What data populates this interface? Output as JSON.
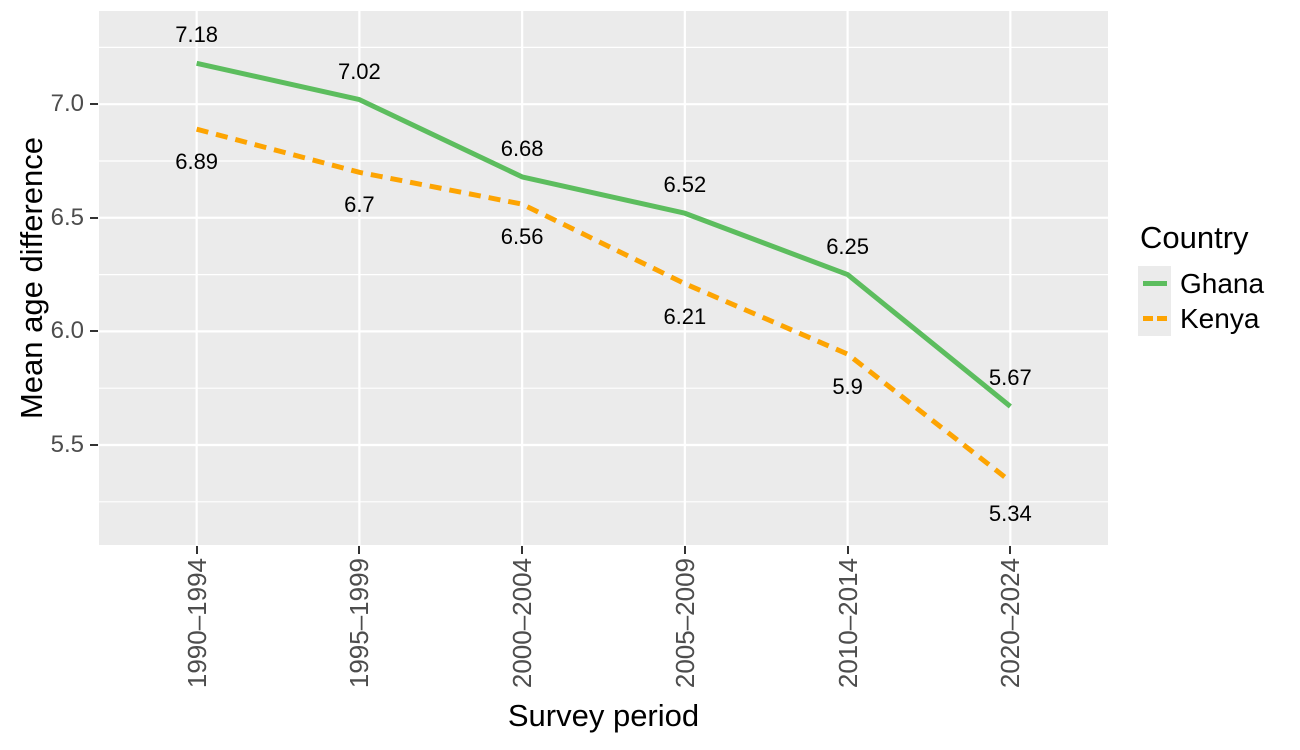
{
  "chart_data": {
    "type": "line",
    "title": "",
    "xlabel": "Survey period",
    "ylabel": "Mean age difference",
    "legend_title": "Country",
    "legend_position": "right",
    "categories": [
      "1990–1994",
      "1995–1999",
      "2000–2004",
      "2005–2009",
      "2010–2014",
      "2020–2024"
    ],
    "series": [
      {
        "name": "Ghana",
        "color": "#5CBD5E",
        "dash": "solid",
        "values": [
          7.18,
          7.02,
          6.68,
          6.52,
          6.25,
          5.67
        ],
        "labels": [
          "7.18",
          "7.02",
          "6.68",
          "6.52",
          "6.25",
          "5.67"
        ],
        "label_side": "above"
      },
      {
        "name": "Kenya",
        "color": "#FDA402",
        "dash": "dashed",
        "values": [
          6.89,
          6.7,
          6.56,
          6.21,
          5.9,
          5.34
        ],
        "labels": [
          "6.89",
          "6.7",
          "6.56",
          "6.21",
          "5.9",
          "5.34"
        ],
        "label_side": "below"
      }
    ],
    "y_ticks": [
      {
        "label": "7.0",
        "value": 7.0
      },
      {
        "label": "6.5",
        "value": 6.5
      },
      {
        "label": "6.0",
        "value": 6.0
      },
      {
        "label": "5.5",
        "value": 5.5
      }
    ],
    "y_minor": [
      7.25,
      6.75,
      6.25,
      5.75,
      5.25
    ],
    "ylim": [
      5.06,
      7.41
    ],
    "grid": true,
    "panel_bg": "#EBEBEB",
    "grid_color": "#FFFFFF",
    "tick_color": "#333333",
    "tick_label_color": "#4D4D4D"
  }
}
